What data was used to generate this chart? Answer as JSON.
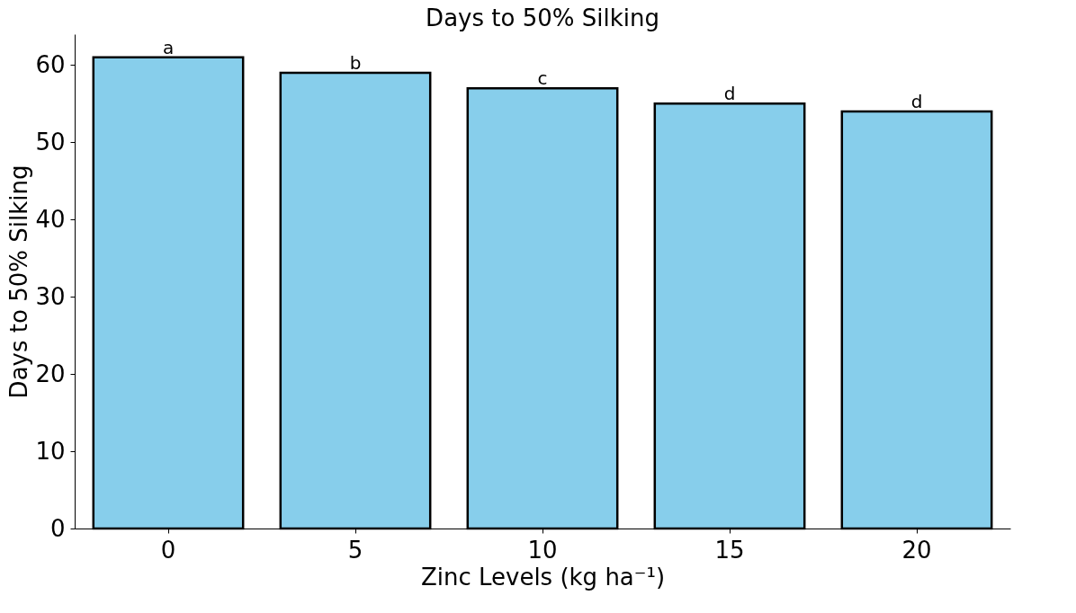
{
  "chart_data": {
    "type": "bar",
    "title": "Days to 50% Silking",
    "xlabel": "Zinc Levels (kg ha⁻¹)",
    "ylabel": "Days to 50% Silking",
    "categories": [
      "0",
      "5",
      "10",
      "15",
      "20"
    ],
    "values": [
      61,
      59,
      57,
      55,
      54
    ],
    "value_labels": [
      "a",
      "b",
      "c",
      "d",
      "d"
    ],
    "color": "#87ceeb",
    "ylim": [
      0,
      64
    ],
    "yticks": [
      0,
      10,
      20,
      30,
      40,
      50,
      60
    ],
    "grid": false
  }
}
